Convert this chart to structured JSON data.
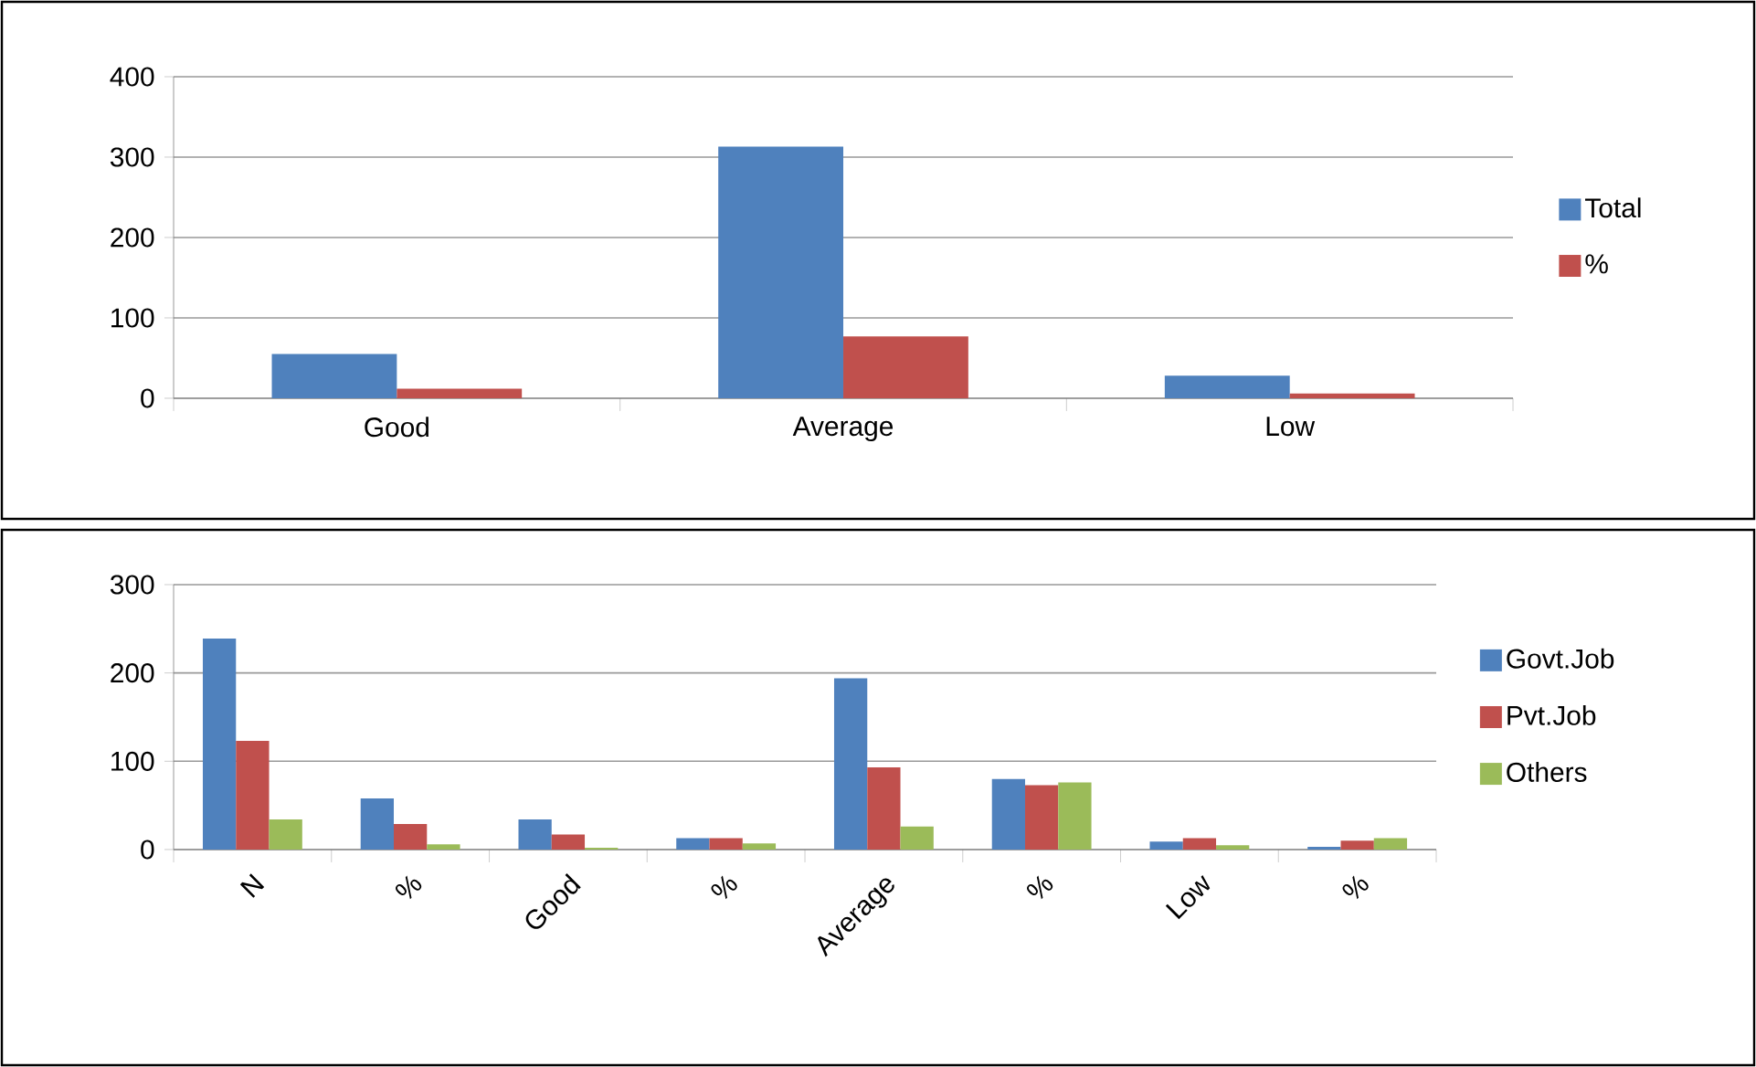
{
  "chart_data": [
    {
      "type": "bar",
      "categories": [
        "Good",
        "Average",
        "Low"
      ],
      "series": [
        {
          "name": "Total",
          "color": "#4f81bd",
          "values": [
            55,
            313,
            28
          ]
        },
        {
          "name": "%",
          "color": "#c0504d",
          "values": [
            12,
            77,
            6
          ]
        }
      ],
      "ylim": [
        0,
        400
      ],
      "yticks": [
        0,
        100,
        200,
        300,
        400
      ],
      "grid": "y",
      "legend": "right"
    },
    {
      "type": "bar",
      "categories": [
        "N",
        "%",
        "Good",
        "%",
        "Average",
        "%",
        "Low",
        "%"
      ],
      "series": [
        {
          "name": "Govt.Job",
          "color": "#4f81bd",
          "values": [
            239,
            58,
            34,
            13,
            194,
            80,
            9,
            3
          ]
        },
        {
          "name": "Pvt.Job",
          "color": "#c0504d",
          "values": [
            123,
            29,
            17,
            13,
            93,
            73,
            13,
            10
          ]
        },
        {
          "name": "Others",
          "color": "#9bbb59",
          "values": [
            34,
            6,
            2,
            7,
            26,
            76,
            5,
            13
          ]
        }
      ],
      "ylim": [
        0,
        300
      ],
      "yticks": [
        0,
        100,
        200,
        300
      ],
      "grid": "y",
      "legend": "right"
    }
  ]
}
